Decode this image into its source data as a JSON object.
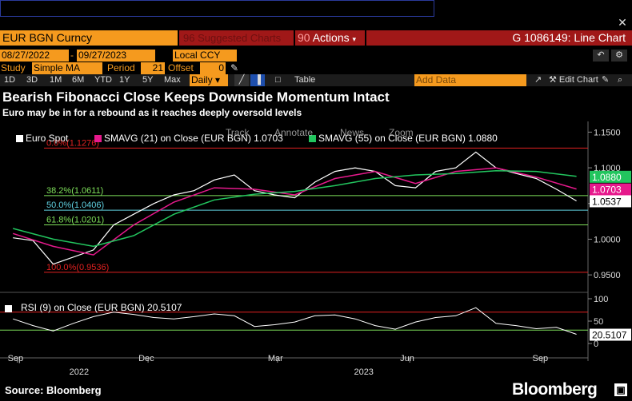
{
  "header": {
    "security": "EUR BGN Curncy",
    "suggested": "Suggested Charts",
    "actions": "Actions",
    "graph_title": "G 1086149: Line Chart"
  },
  "controls": {
    "start_date": "08/27/2022",
    "end_date": "09/27/2023",
    "currency": "Local CCY",
    "study_label": "Study",
    "study": "Simple MA",
    "period_label": "Period",
    "period": "21",
    "offset_label": "Offset",
    "offset": "0",
    "add_data_placeholder": "Add Data",
    "edit_chart": "Edit Chart",
    "table": "Table"
  },
  "timeframes": [
    "1D",
    "3D",
    "1M",
    "6M",
    "YTD",
    "1Y",
    "5Y",
    "Max"
  ],
  "frequency": "Daily",
  "title": "Bearish Fibonacci Close Keeps Downside Momentum Intact",
  "subtitle": "Euro may be in for a rebound as it reaches deeply oversold levels",
  "footer": "Source: Bloomberg",
  "brand": "Bloomberg",
  "colors": {
    "orange": "#f59a1e",
    "red_bar": "#a01818",
    "euro": "#ffffff",
    "sma21": "#e6198c",
    "sma55": "#22c55e",
    "rsi_area_ob": "#a65a5a",
    "rsi_area_os": "#2f7a3a"
  },
  "chart_data": [
    {
      "type": "line",
      "legend": [
        {
          "name": "Euro Spot",
          "value": "",
          "color": "#ffffff"
        },
        {
          "name": "SMAVG (21)  on Close (EUR BGN)",
          "value": "1.0703",
          "color": "#e6198c"
        },
        {
          "name": "SMAVG (55)  on Close (EUR BGN)",
          "value": "1.0880",
          "color": "#22c55e"
        }
      ],
      "menu": [
        "Track",
        "Annotate",
        "News",
        "Zoom"
      ],
      "y_ticks": [
        0.95,
        1.0,
        1.05,
        1.1,
        1.15
      ],
      "y_tick_labels": [
        "0.9500",
        "1.0000",
        "1.0500",
        "1.1000",
        "1.1500"
      ],
      "ylim": [
        0.93,
        1.165
      ],
      "x_month_labels": [
        "Sep",
        "Dec",
        "Mar",
        "Jun",
        "Sep"
      ],
      "x_year_labels": [
        "2022",
        "2023"
      ],
      "fib_levels": [
        {
          "label": "0.0%(1.1276)",
          "value": 1.1276,
          "color": "#e02020"
        },
        {
          "label": "38.2%(1.0611)",
          "value": 1.0611,
          "color": "#7ee05a"
        },
        {
          "label": "50.0%(1.0406)",
          "value": 1.0406,
          "color": "#5fd0e0"
        },
        {
          "label": "61.8%(1.0201)",
          "value": 1.0201,
          "color": "#7ee05a"
        },
        {
          "label": "100.0%(0.9536)",
          "value": 0.9536,
          "color": "#e02020"
        }
      ],
      "last_values": [
        {
          "label": "1.0880",
          "color": "#22c55e"
        },
        {
          "label": "1.0703",
          "color": "#e6198c"
        },
        {
          "label": "1.0537",
          "color": "#000000"
        }
      ],
      "series": [
        {
          "name": "Euro Spot",
          "color": "#ffffff",
          "x": [
            "2022-08-29",
            "2022-09-12",
            "2022-09-26",
            "2022-10-10",
            "2022-10-24",
            "2022-11-07",
            "2022-11-21",
            "2022-12-05",
            "2022-12-19",
            "2023-01-02",
            "2023-01-16",
            "2023-01-30",
            "2023-02-13",
            "2023-02-27",
            "2023-03-13",
            "2023-03-27",
            "2023-04-10",
            "2023-04-24",
            "2023-05-08",
            "2023-05-22",
            "2023-06-05",
            "2023-06-19",
            "2023-07-03",
            "2023-07-17",
            "2023-07-31",
            "2023-08-14",
            "2023-08-28",
            "2023-09-11",
            "2023-09-25"
          ],
          "values": [
            1.002,
            0.998,
            0.965,
            0.975,
            0.985,
            1.02,
            1.035,
            1.05,
            1.062,
            1.068,
            1.083,
            1.09,
            1.068,
            1.062,
            1.058,
            1.08,
            1.095,
            1.1,
            1.095,
            1.075,
            1.072,
            1.095,
            1.1,
            1.122,
            1.1,
            1.092,
            1.085,
            1.07,
            1.0537
          ]
        },
        {
          "name": "SMAVG (21)",
          "color": "#e6198c",
          "x": [
            "2022-08-29",
            "2022-09-26",
            "2022-10-24",
            "2022-11-21",
            "2022-12-19",
            "2023-01-16",
            "2023-02-13",
            "2023-03-13",
            "2023-04-10",
            "2023-05-08",
            "2023-06-05",
            "2023-07-03",
            "2023-07-31",
            "2023-08-28",
            "2023-09-25"
          ],
          "values": [
            1.008,
            0.99,
            0.978,
            1.02,
            1.052,
            1.072,
            1.07,
            1.062,
            1.085,
            1.095,
            1.078,
            1.095,
            1.1,
            1.087,
            1.0703
          ]
        },
        {
          "name": "SMAVG (55)",
          "color": "#22c55e",
          "x": [
            "2022-08-29",
            "2022-09-26",
            "2022-10-24",
            "2022-11-21",
            "2022-12-19",
            "2023-01-16",
            "2023-02-13",
            "2023-03-13",
            "2023-04-10",
            "2023-05-08",
            "2023-06-05",
            "2023-07-03",
            "2023-07-31",
            "2023-08-28",
            "2023-09-25"
          ],
          "values": [
            1.015,
            1.0,
            0.99,
            1.005,
            1.035,
            1.055,
            1.063,
            1.067,
            1.075,
            1.085,
            1.09,
            1.092,
            1.096,
            1.095,
            1.088
          ]
        }
      ]
    },
    {
      "type": "line",
      "legend": [
        {
          "name": "RSI (9)  on Close (EUR BGN)",
          "value": "20.5107",
          "color": "#ffffff"
        }
      ],
      "y_ticks": [
        0,
        50,
        100
      ],
      "y_tick_labels": [
        "0",
        "50",
        "100"
      ],
      "ylim": [
        0,
        100
      ],
      "reference_lines": [
        70,
        30
      ],
      "last_value": "20.5107",
      "series": [
        {
          "name": "RSI (9)",
          "color": "#ffffff",
          "x": [
            "2022-08-29",
            "2022-09-12",
            "2022-09-26",
            "2022-10-10",
            "2022-10-24",
            "2022-11-07",
            "2022-11-21",
            "2022-12-05",
            "2022-12-19",
            "2023-01-02",
            "2023-01-16",
            "2023-01-30",
            "2023-02-13",
            "2023-02-27",
            "2023-03-13",
            "2023-03-27",
            "2023-04-10",
            "2023-04-24",
            "2023-05-08",
            "2023-05-22",
            "2023-06-05",
            "2023-06-19",
            "2023-07-03",
            "2023-07-17",
            "2023-07-31",
            "2023-08-14",
            "2023-08-28",
            "2023-09-11",
            "2023-09-25"
          ],
          "values": [
            55,
            40,
            28,
            45,
            60,
            70,
            65,
            58,
            55,
            60,
            66,
            62,
            38,
            42,
            48,
            62,
            64,
            55,
            40,
            32,
            48,
            58,
            62,
            80,
            45,
            40,
            33,
            36,
            20.5107
          ]
        }
      ]
    }
  ]
}
